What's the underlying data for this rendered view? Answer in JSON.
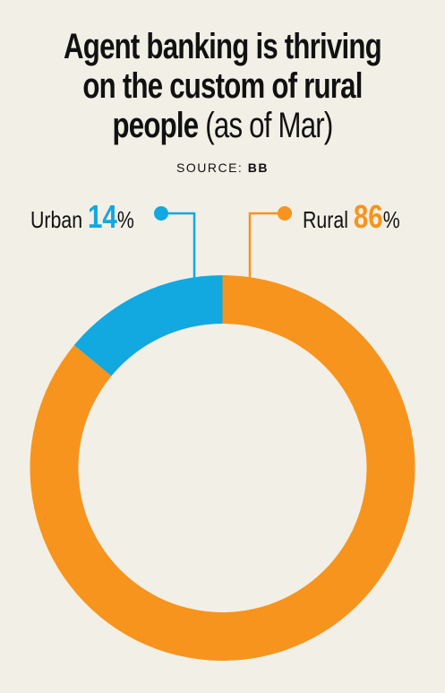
{
  "header": {
    "title_line1": "Agent banking is thriving",
    "title_line2": "on the custom of rural",
    "title_line3": "people",
    "title_suffix": "(as of Mar)"
  },
  "source": {
    "label": "SOURCE:",
    "value": "BB"
  },
  "chart_data": {
    "type": "pie",
    "title": "Agent banking is thriving on the custom of rural people (as of Mar)",
    "donut": true,
    "categories": [
      "Urban",
      "Rural"
    ],
    "values": [
      14,
      86
    ],
    "unit": "%",
    "colors": [
      "#12a8e0",
      "#f7941d"
    ],
    "legend": [
      {
        "name": "Urban",
        "value": "14",
        "unit": "%",
        "color": "#12a8e0"
      },
      {
        "name": "Rural",
        "value": "86",
        "unit": "%",
        "color": "#f7941d"
      }
    ]
  }
}
